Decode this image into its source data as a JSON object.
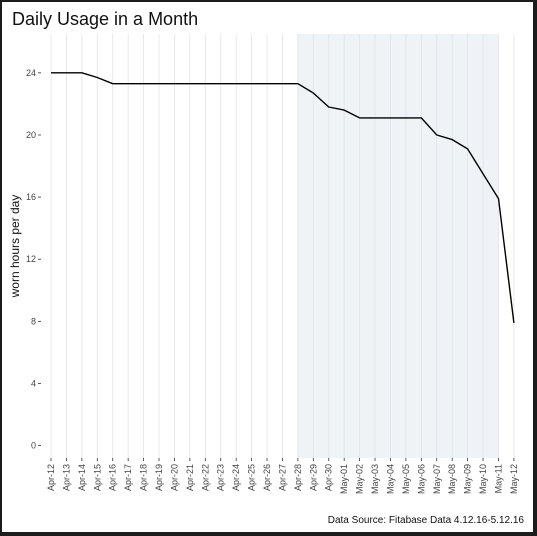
{
  "chart_data": {
    "type": "line",
    "title": "Daily Usage in a Month",
    "xlabel": "",
    "ylabel": "worn hours per day",
    "caption": "Data Source: Fitabase Data 4.12.16-5.12.16",
    "categories": [
      "Apr-12",
      "Apr-13",
      "Apr-14",
      "Apr-15",
      "Apr-16",
      "Apr-17",
      "Apr-18",
      "Apr-19",
      "Apr-20",
      "Apr-21",
      "Apr-22",
      "Apr-23",
      "Apr-24",
      "Apr-25",
      "Apr-26",
      "Apr-27",
      "Apr-28",
      "Apr-29",
      "Apr-30",
      "May-01",
      "May-02",
      "May-03",
      "May-04",
      "May-05",
      "May-06",
      "May-07",
      "May-08",
      "May-09",
      "May-10",
      "May-11",
      "May-12"
    ],
    "values": [
      24.0,
      24.0,
      24.0,
      23.7,
      23.3,
      23.3,
      23.3,
      23.3,
      23.3,
      23.3,
      23.3,
      23.3,
      23.3,
      23.3,
      23.3,
      23.3,
      23.3,
      22.7,
      21.8,
      21.6,
      21.1,
      21.1,
      21.1,
      21.1,
      21.1,
      20.0,
      19.7,
      19.1,
      17.5,
      15.9,
      7.9
    ],
    "ylim": [
      -0.8,
      26.5
    ],
    "yticks": [
      0,
      4,
      8,
      12,
      16,
      20,
      24
    ],
    "highlight": {
      "from": "Apr-28",
      "to": "May-11",
      "color": "#edf3f6"
    },
    "line_color": "#000000",
    "grid": true
  }
}
